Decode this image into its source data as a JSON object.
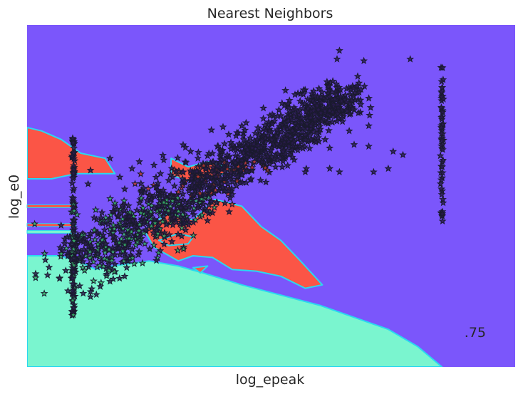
{
  "chart_data": {
    "type": "scatter",
    "title": "Nearest Neighbors",
    "xlabel": "log_epeak",
    "ylabel": "log_e0",
    "score_text": ".75",
    "xlim": [
      0,
      100
    ],
    "ylim": [
      0,
      100
    ],
    "ticks_shown": false,
    "grid": false,
    "marker": "star",
    "colors": {
      "background_region": "#7b56fb",
      "lower_region": "#7af5cf",
      "island_region": "#fb5546",
      "boundary_edge": "#2ad8f0",
      "marker_dark": "#2a1b4d",
      "marker_edge": "#1a1a2e",
      "marker_green_fill": "#3ab56a",
      "marker_red_fill": "#c0392b"
    },
    "regions": [
      {
        "label": "class-1",
        "color": "#7af5cf",
        "polygon": [
          [
            0,
            32.5
          ],
          [
            6.5,
            32.5
          ],
          [
            10.5,
            31
          ],
          [
            14,
            28.5
          ],
          [
            17.5,
            29.5
          ],
          [
            25,
            31
          ],
          [
            31,
            29.5
          ],
          [
            36,
            27.5
          ],
          [
            44,
            24
          ],
          [
            52,
            21
          ],
          [
            60,
            18
          ],
          [
            68,
            14
          ],
          [
            74,
            11
          ],
          [
            80,
            6
          ],
          [
            85,
            0
          ],
          [
            0,
            0
          ]
        ]
      },
      {
        "label": "class-0",
        "color": "#fb5546",
        "polygon": [
          [
            0,
            70
          ],
          [
            3,
            69
          ],
          [
            7,
            66.5
          ],
          [
            11,
            62.5
          ],
          [
            16,
            61
          ],
          [
            18,
            56.5
          ],
          [
            10,
            56.5
          ],
          [
            5,
            55
          ],
          [
            0,
            55
          ]
        ]
      },
      {
        "label": "class-0",
        "color": "#fb5546",
        "polygon": [
          [
            29.5,
            61
          ],
          [
            33,
            58.5
          ],
          [
            37,
            60
          ],
          [
            42,
            58
          ],
          [
            39,
            55.5
          ],
          [
            33,
            54.5
          ],
          [
            29.5,
            56
          ]
        ]
      },
      {
        "label": "class-0",
        "color": "#fb5546",
        "polygon": [
          [
            24,
            40
          ],
          [
            29,
            45
          ],
          [
            34,
            43
          ],
          [
            38.5,
            49
          ],
          [
            44,
            47
          ],
          [
            48,
            41
          ],
          [
            52,
            37
          ],
          [
            56,
            31
          ],
          [
            60.5,
            24
          ],
          [
            57,
            23
          ],
          [
            52,
            26.5
          ],
          [
            47,
            28
          ],
          [
            42,
            28.5
          ],
          [
            38,
            32
          ],
          [
            34,
            32.5
          ],
          [
            31,
            31
          ],
          [
            26,
            35
          ]
        ]
      },
      {
        "label": "class-0",
        "color": "#fb5546",
        "polygon": [
          [
            27,
            37
          ],
          [
            31,
            39
          ],
          [
            34,
            38
          ],
          [
            33,
            36
          ],
          [
            29,
            35.5
          ]
        ]
      },
      {
        "label": "class-0",
        "color": "#fb5546",
        "polygon": [
          [
            34,
            29
          ],
          [
            37,
            29.5
          ],
          [
            35.5,
            27.5
          ]
        ]
      }
    ],
    "bands": [
      {
        "y": 47,
        "color": "#fb5546"
      },
      {
        "y": 41.5,
        "color": "#fb5546"
      },
      {
        "y": 39.5,
        "color": "#7af5cf"
      }
    ],
    "clusters": [
      {
        "name": "main-diagonal",
        "count": 1400,
        "x_from": 10,
        "y_from": 30,
        "x_to": 66,
        "y_to": 80,
        "spread": 4.5
      },
      {
        "name": "left-column",
        "count": 130,
        "x": 9.5,
        "y_min": 15,
        "y_max": 67
      },
      {
        "name": "right-column",
        "count": 60,
        "x": 85,
        "y_min": 42,
        "y_max": 88
      }
    ],
    "sample_points": [
      [
        64,
        92.5
      ],
      [
        63.5,
        90
      ],
      [
        69,
        89.5
      ],
      [
        78.5,
        90
      ],
      [
        53.5,
        77
      ],
      [
        52,
        73.5
      ],
      [
        44,
        70.5
      ],
      [
        43,
        68.5
      ],
      [
        56,
        67
      ],
      [
        70,
        70.5
      ],
      [
        66,
        69
      ],
      [
        62,
        64
      ],
      [
        67,
        65
      ],
      [
        70,
        64.5
      ],
      [
        57,
        57
      ],
      [
        62,
        58
      ],
      [
        64,
        57
      ],
      [
        71,
        57
      ],
      [
        74,
        58
      ],
      [
        75,
        63
      ],
      [
        77,
        62
      ],
      [
        26,
        59
      ],
      [
        28,
        60.5
      ],
      [
        32,
        57
      ],
      [
        33.5,
        63
      ],
      [
        39,
        64.5
      ],
      [
        35,
        61
      ],
      [
        41,
        62
      ],
      [
        17,
        61
      ],
      [
        23,
        60
      ],
      [
        21.5,
        58
      ],
      [
        13,
        57.5
      ],
      [
        12.5,
        53.5
      ],
      [
        20,
        52
      ],
      [
        19,
        55.5
      ],
      [
        17,
        43
      ],
      [
        15.5,
        42
      ],
      [
        13,
        39
      ],
      [
        12,
        36
      ],
      [
        14.5,
        33
      ],
      [
        18,
        30
      ],
      [
        20,
        26.5
      ],
      [
        17,
        25
      ],
      [
        15,
        23.5
      ],
      [
        13,
        22
      ],
      [
        11.5,
        21.5
      ],
      [
        13,
        20.5
      ],
      [
        21,
        44
      ],
      [
        25.5,
        49
      ],
      [
        27,
        47
      ],
      [
        24,
        42.5
      ],
      [
        22,
        41
      ],
      [
        23,
        38
      ],
      [
        28,
        44
      ]
    ]
  }
}
